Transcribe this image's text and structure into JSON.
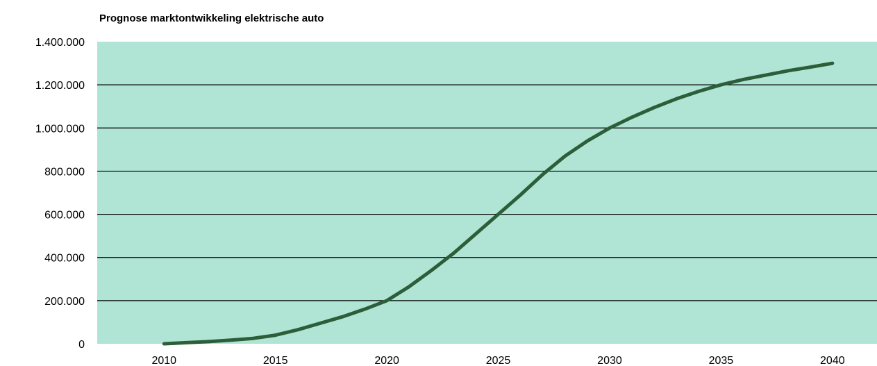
{
  "chart_data": {
    "type": "line",
    "title": "Prognose marktontwikkeling elektrische auto",
    "xlabel": "",
    "ylabel": "",
    "x_ticks": [
      "2010",
      "2015",
      "2020",
      "2025",
      "2030",
      "2035",
      "2040"
    ],
    "y_ticks": [
      "0",
      "200.000",
      "400.000",
      "600.000",
      "800.000",
      "1.000.000",
      "1.200.000",
      "1.400.000"
    ],
    "xlim": [
      2007,
      2042
    ],
    "ylim": [
      0,
      1400000
    ],
    "grid": "horizontal",
    "background_color": "#b0e4d4",
    "line_color": "#2c5e3a",
    "series": [
      {
        "name": "",
        "x": [
          2010,
          2011,
          2012,
          2013,
          2014,
          2015,
          2016,
          2017,
          2018,
          2019,
          2020,
          2021,
          2022,
          2023,
          2024,
          2025,
          2026,
          2027,
          2028,
          2029,
          2030,
          2031,
          2032,
          2033,
          2034,
          2035,
          2036,
          2037,
          2038,
          2039,
          2040
        ],
        "values": [
          0,
          5000,
          10000,
          17000,
          25000,
          40000,
          65000,
          95000,
          125000,
          160000,
          200000,
          265000,
          340000,
          420000,
          510000,
          600000,
          690000,
          785000,
          870000,
          940000,
          1000000,
          1050000,
          1095000,
          1135000,
          1170000,
          1200000,
          1225000,
          1245000,
          1265000,
          1282000,
          1300000
        ]
      }
    ]
  }
}
